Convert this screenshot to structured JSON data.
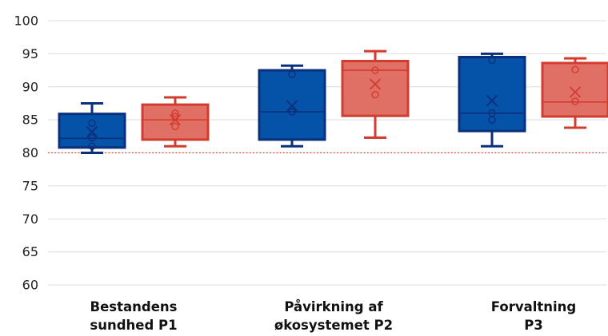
{
  "chart_data": {
    "type": "box",
    "ylim": [
      60,
      100
    ],
    "yticks": [
      60,
      65,
      70,
      75,
      80,
      85,
      90,
      95,
      100
    ],
    "ytick_labels": [
      "60",
      "65",
      "70",
      "75",
      "80",
      "85",
      "90",
      "95",
      "100"
    ],
    "reference_line": {
      "y": 80,
      "style": "dotted",
      "color": "#d9382c"
    },
    "categories": [
      {
        "lines": [
          "Bestandens",
          "sundhed P1"
        ]
      },
      {
        "lines": [
          "Påvirkning af",
          "økosystemet P2"
        ]
      },
      {
        "lines": [
          "Forvaltning",
          "P3"
        ]
      }
    ],
    "series": [
      {
        "fill": "#0453a8",
        "stroke": "#0b2f7a",
        "boxes": [
          {
            "min": 80.0,
            "q1": 80.8,
            "median": 82.2,
            "q3": 85.9,
            "max": 87.5,
            "mean": 83.2,
            "points": [
              81.0,
              82.3,
              84.5
            ]
          },
          {
            "min": 81.0,
            "q1": 82.0,
            "median": 86.2,
            "q3": 92.5,
            "max": 93.2,
            "mean": 87.1,
            "points": [
              86.2,
              91.9
            ]
          },
          {
            "min": 81.0,
            "q1": 83.3,
            "median": 86.0,
            "q3": 94.5,
            "max": 95.0,
            "mean": 87.9,
            "points": [
              85.0,
              86.0,
              94.0
            ]
          }
        ]
      },
      {
        "fill": "#e07066",
        "stroke": "#d23b2d",
        "boxes": [
          {
            "min": 81.0,
            "q1": 82.0,
            "median": 85.0,
            "q3": 87.3,
            "max": 88.4,
            "mean": 85.0,
            "points": [
              84.0,
              85.5,
              86.0
            ]
          },
          {
            "min": 82.3,
            "q1": 85.6,
            "median": 92.5,
            "q3": 93.9,
            "max": 95.4,
            "mean": 90.4,
            "points": [
              88.8,
              92.5
            ]
          },
          {
            "min": 83.8,
            "q1": 85.5,
            "median": 87.7,
            "q3": 93.6,
            "max": 94.3,
            "mean": 89.2,
            "points": [
              87.8,
              92.6
            ]
          }
        ]
      }
    ]
  }
}
